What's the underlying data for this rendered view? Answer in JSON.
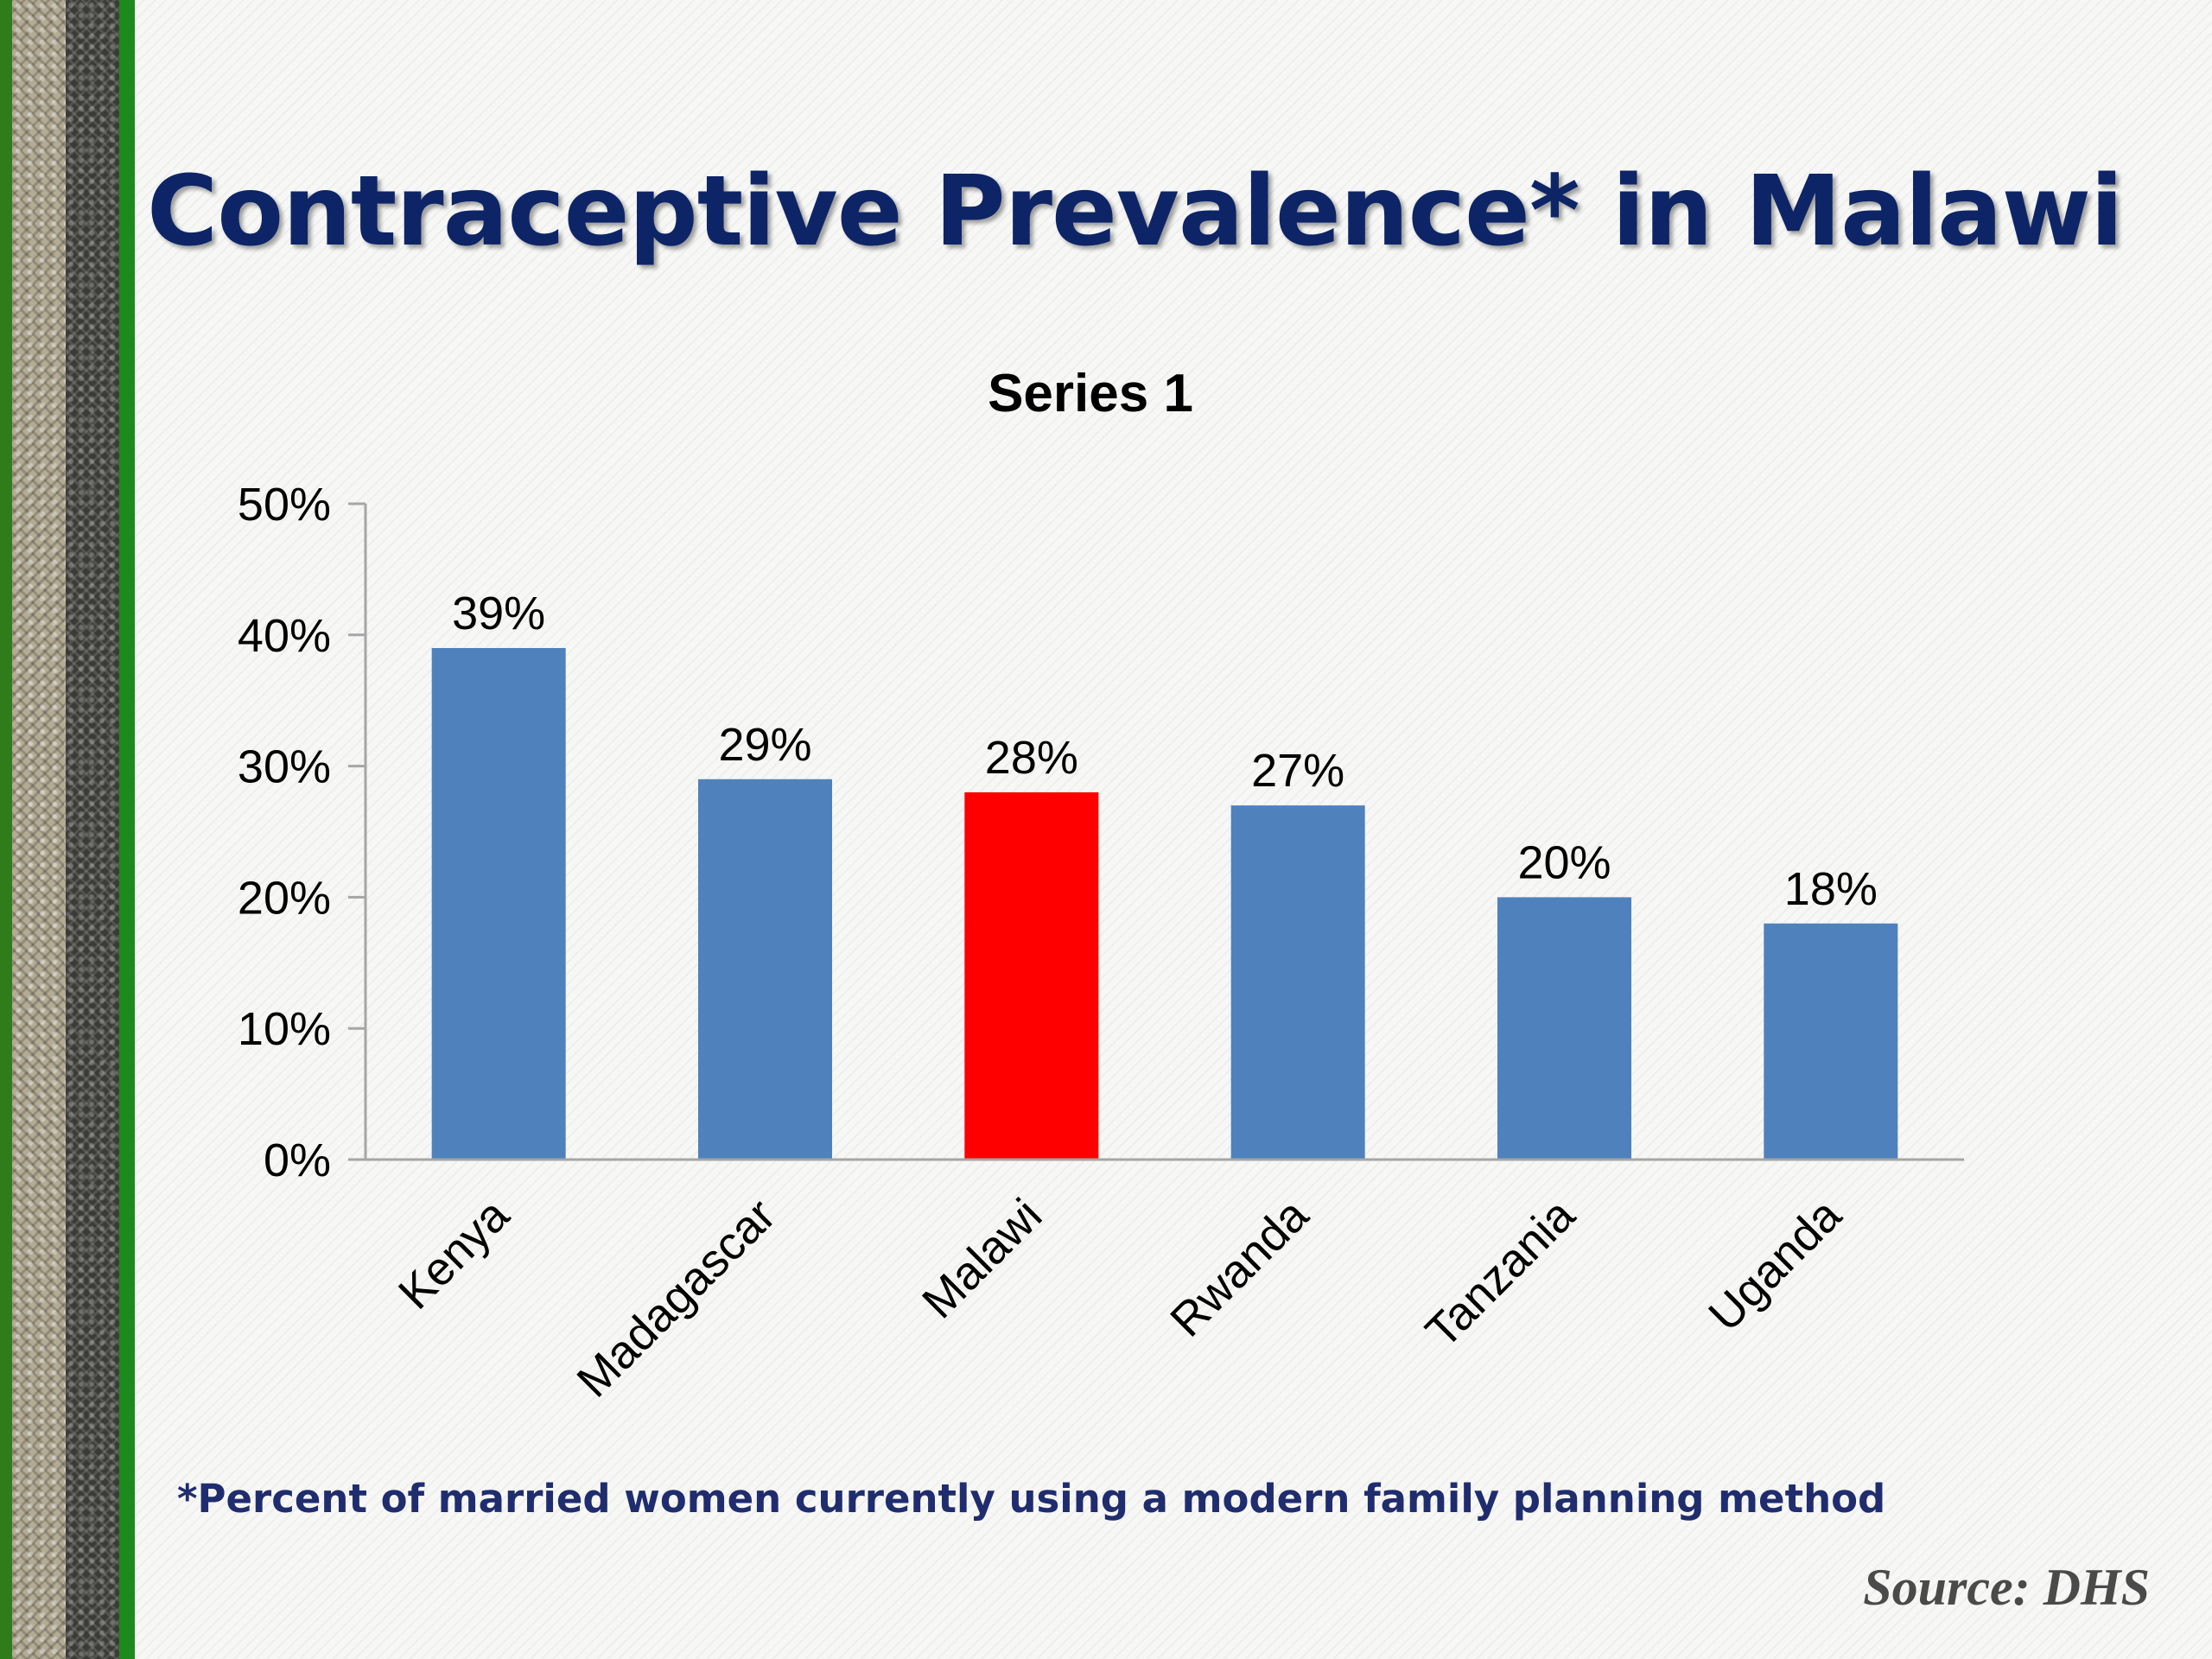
{
  "slide": {
    "title": "Contraceptive Prevalence* in Malawi",
    "footnote": "*Percent of married women currently using a modern family planning method",
    "source": "Source: DHS"
  },
  "colors": {
    "default_bar": "#4f81bd",
    "highlight_bar": "#ff0000",
    "title": "#0d2566",
    "footnote": "#1f2d6e",
    "axis": "#a6a6a6"
  },
  "chart_data": {
    "type": "bar",
    "title": "Series 1",
    "categories": [
      "Kenya",
      "Madagascar",
      "Malawi",
      "Rwanda",
      "Tanzania",
      "Uganda"
    ],
    "values": [
      39,
      29,
      28,
      27,
      20,
      18
    ],
    "data_labels": [
      "39%",
      "29%",
      "28%",
      "27%",
      "20%",
      "18%"
    ],
    "highlight_category": "Malawi",
    "ylim": [
      0,
      50
    ],
    "yticks": [
      0,
      10,
      20,
      30,
      40,
      50
    ],
    "ytick_labels": [
      "0%",
      "10%",
      "20%",
      "30%",
      "40%",
      "50%"
    ],
    "xlabel": "",
    "ylabel": "",
    "grid": false,
    "legend": "none"
  }
}
